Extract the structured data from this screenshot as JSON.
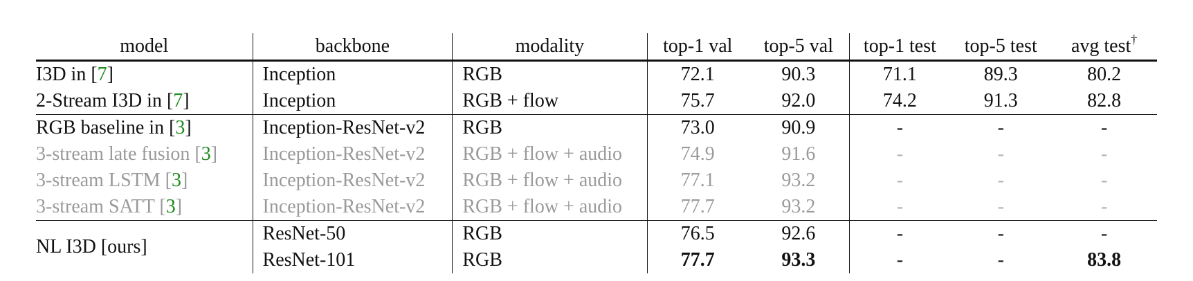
{
  "table": {
    "headers": [
      "model",
      "backbone",
      "modality",
      "top-1 val",
      "top-5 val",
      "top-1 test",
      "top-5 test",
      "avg test"
    ],
    "header_sup": "†",
    "rows": [
      {
        "model_prefix": "I3D in [",
        "cite": "7",
        "model_suffix": "]",
        "backbone": "Inception",
        "modality": "RGB",
        "top1_val": "72.1",
        "top5_val": "90.3",
        "top1_test": "71.1",
        "top5_test": "89.3",
        "avg_test": "80.2"
      },
      {
        "model_prefix": "2-Stream I3D in [",
        "cite": "7",
        "model_suffix": "]",
        "backbone": "Inception",
        "modality": "RGB + flow",
        "top1_val": "75.7",
        "top5_val": "92.0",
        "top1_test": "74.2",
        "top5_test": "91.3",
        "avg_test": "82.8"
      },
      {
        "model_prefix": "RGB baseline in [",
        "cite": "3",
        "model_suffix": "]",
        "backbone": "Inception-ResNet-v2",
        "modality": "RGB",
        "top1_val": "73.0",
        "top5_val": "90.9",
        "top1_test": "-",
        "top5_test": "-",
        "avg_test": "-"
      },
      {
        "model_prefix": "3-stream late fusion [",
        "cite": "3",
        "model_suffix": "]",
        "backbone": "Inception-ResNet-v2",
        "modality": "RGB + flow + audio",
        "top1_val": "74.9",
        "top5_val": "91.6",
        "top1_test": "-",
        "top5_test": "-",
        "avg_test": "-"
      },
      {
        "model_prefix": "3-stream LSTM [",
        "cite": "3",
        "model_suffix": "]",
        "backbone": "Inception-ResNet-v2",
        "modality": "RGB + flow + audio",
        "top1_val": "77.1",
        "top5_val": "93.2",
        "top1_test": "-",
        "top5_test": "-",
        "avg_test": "-"
      },
      {
        "model_prefix": "3-stream SATT [",
        "cite": "3",
        "model_suffix": "]",
        "backbone": "Inception-ResNet-v2",
        "modality": "RGB + flow + audio",
        "top1_val": "77.7",
        "top5_val": "93.2",
        "top1_test": "-",
        "top5_test": "-",
        "avg_test": "-"
      }
    ],
    "ours": {
      "model": "NL I3D [ours]",
      "rows": [
        {
          "backbone": "ResNet-50",
          "modality": "RGB",
          "top1_val": "76.5",
          "top5_val": "92.6",
          "top1_test": "-",
          "top5_test": "-",
          "avg_test": "-"
        },
        {
          "backbone": "ResNet-101",
          "modality": "RGB",
          "top1_val": "77.7",
          "top5_val": "93.3",
          "top1_test": "-",
          "top5_test": "-",
          "avg_test": "83.8"
        }
      ]
    }
  }
}
